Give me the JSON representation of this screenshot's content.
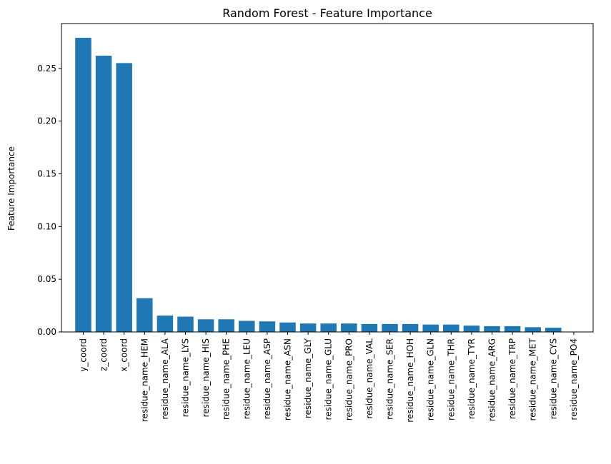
{
  "chart_data": {
    "type": "bar",
    "title": "Random Forest - Feature Importance",
    "xlabel": "",
    "ylabel": "Feature Importance",
    "categories": [
      "y_coord",
      "z_coord",
      "x_coord",
      "residue_name_HEM",
      "residue_name_ALA",
      "residue_name_LYS",
      "residue_name_HIS",
      "residue_name_PHE",
      "residue_name_LEU",
      "residue_name_ASP",
      "residue_name_ASN",
      "residue_name_GLY",
      "residue_name_GLU",
      "residue_name_PRO",
      "residue_name_VAL",
      "residue_name_SER",
      "residue_name_HOH",
      "residue_name_GLN",
      "residue_name_THR",
      "residue_name_TYR",
      "residue_name_ARG",
      "residue_name_TRP",
      "residue_name_MET",
      "residue_name_CYS",
      "residue_name_PO4"
    ],
    "values": [
      0.279,
      0.262,
      0.255,
      0.032,
      0.0155,
      0.0145,
      0.012,
      0.012,
      0.0105,
      0.01,
      0.009,
      0.008,
      0.008,
      0.008,
      0.0075,
      0.0075,
      0.0075,
      0.007,
      0.007,
      0.006,
      0.0055,
      0.0055,
      0.0045,
      0.004,
      0.0
    ],
    "ylim": [
      0,
      0.2925
    ],
    "yticks": [
      "0.00",
      "0.05",
      "0.10",
      "0.15",
      "0.20",
      "0.25"
    ],
    "ytick_values": [
      0,
      0.05,
      0.1,
      0.15,
      0.2,
      0.25
    ],
    "bar_color": "#1f77b4",
    "grid": false,
    "legend": "none"
  }
}
